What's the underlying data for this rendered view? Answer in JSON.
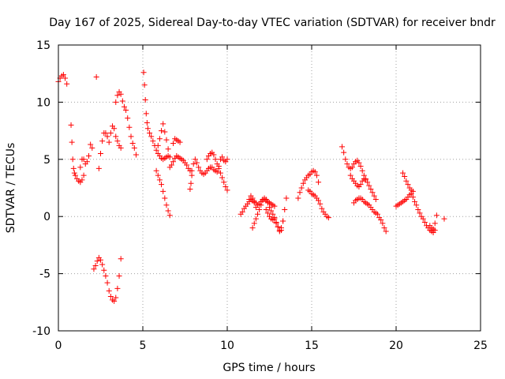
{
  "chart_data": {
    "type": "scatter",
    "title": "Day 167 of 2025, Sidereal Day-to-day VTEC variation (SDTVAR) for receiver bndr",
    "xlabel": "GPS time / hours",
    "ylabel": "SDTVAR / TECUs",
    "xlim": [
      0,
      25
    ],
    "ylim": [
      -10,
      15
    ],
    "xticks": [
      0,
      5,
      10,
      15,
      20,
      25
    ],
    "yticks": [
      -10,
      -5,
      0,
      5,
      10,
      15
    ],
    "xtick_labels": [
      "0",
      "5",
      "10",
      "15",
      "20",
      "25"
    ],
    "ytick_labels": [
      "-10",
      "-5",
      "0",
      "5",
      "10",
      "15"
    ],
    "grid": true,
    "marker": "+",
    "color": "#ff0000",
    "series": [
      {
        "name": "arc-00",
        "x": [
          0.0,
          0.1,
          0.2,
          0.3,
          0.4,
          0.5
        ],
        "y": [
          11.8,
          12.1,
          12.3,
          12.4,
          12.1,
          11.6
        ]
      },
      {
        "name": "arc-01",
        "x": [
          0.75,
          0.8,
          0.85,
          0.9,
          0.95,
          1.0,
          1.1,
          1.2,
          1.3,
          1.4,
          1.5
        ],
        "y": [
          8.0,
          6.5,
          5.0,
          4.2,
          3.8,
          3.6,
          3.3,
          3.1,
          3.0,
          3.2,
          3.6
        ]
      },
      {
        "name": "arc-02",
        "x": [
          1.3,
          1.4,
          1.5,
          1.6,
          1.7,
          1.8,
          1.9,
          2.0
        ],
        "y": [
          4.3,
          5.0,
          5.0,
          4.6,
          4.8,
          5.3,
          6.3,
          6.0
        ]
      },
      {
        "name": "arc-03",
        "x": [
          2.25
        ],
        "y": [
          12.2
        ]
      },
      {
        "name": "arc-04",
        "x": [
          2.1,
          2.2,
          2.3,
          2.4,
          2.5,
          2.6,
          2.7,
          2.8,
          2.9,
          3.0,
          3.1,
          3.2,
          3.3,
          3.4,
          3.5,
          3.6,
          3.7
        ],
        "y": [
          -4.6,
          -4.3,
          -3.9,
          -3.6,
          -3.8,
          -4.2,
          -4.7,
          -5.2,
          -5.8,
          -6.5,
          -7.0,
          -7.3,
          -7.4,
          -7.1,
          -6.3,
          -5.2,
          -3.7
        ]
      },
      {
        "name": "arc-05",
        "x": [
          2.4,
          2.5,
          2.6,
          2.7,
          2.8,
          2.9,
          3.0,
          3.1,
          3.2,
          3.3,
          3.4,
          3.5,
          3.6,
          3.7
        ],
        "y": [
          4.2,
          5.5,
          6.6,
          7.3,
          7.3,
          7.0,
          6.5,
          7.3,
          7.9,
          7.7,
          7.0,
          6.6,
          6.2,
          6.0
        ]
      },
      {
        "name": "arc-06",
        "x": [
          3.4,
          3.5,
          3.6,
          3.7,
          3.8,
          3.9,
          4.0,
          4.1,
          4.2,
          4.3,
          4.4,
          4.5,
          4.6
        ],
        "y": [
          10.0,
          10.6,
          10.9,
          10.7,
          10.1,
          9.6,
          9.3,
          8.6,
          7.8,
          7.0,
          6.4,
          6.0,
          5.4
        ]
      },
      {
        "name": "arc-07",
        "x": [
          5.05,
          5.1,
          5.15,
          5.2,
          5.25,
          5.3,
          5.4,
          5.5,
          5.6,
          5.7,
          5.8,
          5.9,
          6.0,
          6.1,
          6.2,
          6.3,
          6.4,
          6.5,
          6.6
        ],
        "y": [
          12.6,
          11.5,
          10.2,
          9.0,
          8.2,
          7.7,
          7.3,
          7.0,
          6.6,
          6.2,
          5.8,
          5.5,
          5.3,
          5.1,
          5.0,
          5.1,
          5.2,
          5.3,
          5.2
        ]
      },
      {
        "name": "arc-08",
        "x": [
          5.8,
          5.9,
          6.0,
          6.1,
          6.2,
          6.3,
          6.4,
          6.5,
          6.6
        ],
        "y": [
          4.0,
          3.6,
          3.2,
          2.8,
          2.2,
          1.6,
          1.0,
          0.5,
          0.1
        ]
      },
      {
        "name": "arc-09",
        "x": [
          5.9,
          6.0,
          6.1,
          6.2,
          6.3,
          6.4,
          6.5
        ],
        "y": [
          6.2,
          6.8,
          7.5,
          8.1,
          7.4,
          6.7,
          5.9
        ]
      },
      {
        "name": "arc-10",
        "x": [
          6.6,
          6.7,
          6.8,
          6.9,
          7.0,
          7.1,
          7.2,
          7.3,
          7.4,
          7.5,
          7.6,
          7.7,
          7.8
        ],
        "y": [
          4.3,
          4.5,
          4.8,
          5.1,
          5.3,
          5.2,
          5.1,
          5.0,
          4.9,
          4.7,
          4.5,
          4.2,
          4.0
        ]
      },
      {
        "name": "arc-11",
        "x": [
          6.8,
          6.9,
          7.0,
          7.1,
          7.2
        ],
        "y": [
          6.4,
          6.8,
          6.7,
          6.6,
          6.5
        ]
      },
      {
        "name": "arc-12",
        "x": [
          7.8,
          7.85,
          7.9
        ],
        "y": [
          2.4,
          2.9,
          3.6
        ]
      },
      {
        "name": "arc-13",
        "x": [
          7.9,
          8.0,
          8.1,
          8.2,
          8.3,
          8.4,
          8.5,
          8.6,
          8.7,
          8.8,
          8.9,
          9.0,
          9.1,
          9.2,
          9.3,
          9.4,
          9.5,
          9.6,
          9.7,
          9.8,
          9.9,
          10.0
        ],
        "y": [
          4.0,
          4.6,
          5.0,
          4.7,
          4.3,
          4.0,
          3.8,
          3.7,
          3.8,
          4.0,
          4.2,
          4.3,
          4.3,
          4.1,
          4.0,
          3.9,
          4.4,
          5.0,
          5.2,
          4.9,
          4.8,
          5.0
        ]
      },
      {
        "name": "arc-14",
        "x": [
          8.8,
          8.9,
          9.0,
          9.1,
          9.2,
          9.3,
          9.4,
          9.5,
          9.6,
          9.7,
          9.8,
          9.9,
          10.0
        ],
        "y": [
          5.0,
          5.3,
          5.5,
          5.6,
          5.4,
          5.0,
          4.6,
          4.2,
          3.8,
          3.4,
          3.0,
          2.6,
          2.3
        ]
      },
      {
        "name": "arc-15",
        "x": [
          10.8,
          10.9,
          11.0,
          11.1,
          11.2,
          11.3,
          11.4,
          11.5,
          11.6,
          11.7,
          11.8,
          11.9,
          12.0,
          12.1,
          12.2,
          12.3,
          12.4,
          12.5,
          12.6,
          12.7,
          12.8
        ],
        "y": [
          0.2,
          0.4,
          0.7,
          0.9,
          1.1,
          1.3,
          1.5,
          1.4,
          1.3,
          1.2,
          1.0,
          1.1,
          1.3,
          1.5,
          1.5,
          1.4,
          1.3,
          1.2,
          1.1,
          1.0,
          0.9
        ]
      },
      {
        "name": "arc-16",
        "x": [
          11.3,
          11.4,
          11.5,
          11.6,
          11.7
        ],
        "y": [
          1.5,
          1.8,
          1.6,
          1.2,
          0.8
        ]
      },
      {
        "name": "arc-17",
        "x": [
          11.5,
          11.6,
          11.7,
          11.8,
          11.9,
          12.0,
          12.1,
          12.2,
          12.3,
          12.4,
          12.5,
          12.6,
          12.7,
          12.8,
          12.9,
          13.0,
          13.1,
          13.2,
          13.3,
          13.4,
          13.5
        ],
        "y": [
          -1.0,
          -0.6,
          -0.2,
          0.2,
          0.6,
          1.0,
          1.4,
          1.6,
          1.5,
          1.2,
          0.8,
          0.5,
          0.2,
          -0.1,
          -0.5,
          -0.9,
          -1.3,
          -1.2,
          -0.4,
          0.6,
          1.6
        ]
      },
      {
        "name": "arc-18",
        "x": [
          12.3,
          12.4,
          12.5,
          12.6,
          12.7,
          12.8,
          12.9,
          13.0,
          13.1,
          13.2,
          13.3
        ],
        "y": [
          0.6,
          0.3,
          0.0,
          -0.2,
          -0.3,
          -0.2,
          -0.6,
          -0.9,
          -1.2,
          -1.0,
          -0.4
        ]
      },
      {
        "name": "arc-19",
        "x": [
          14.2,
          14.3,
          14.4,
          14.5,
          14.6,
          14.7,
          14.8,
          14.9,
          15.0,
          15.1,
          15.2,
          15.3,
          15.4
        ],
        "y": [
          1.6,
          2.1,
          2.5,
          2.9,
          3.2,
          3.4,
          3.6,
          3.7,
          3.9,
          4.0,
          3.9,
          3.6,
          3.0
        ]
      },
      {
        "name": "arc-20",
        "x": [
          14.8,
          14.9,
          15.0,
          15.1,
          15.2,
          15.3,
          15.4,
          15.5,
          15.6,
          15.7,
          15.8,
          15.9,
          16.0
        ],
        "y": [
          2.3,
          2.2,
          2.0,
          1.9,
          1.8,
          1.6,
          1.4,
          1.1,
          0.7,
          0.4,
          0.2,
          0.0,
          -0.1
        ]
      },
      {
        "name": "arc-21",
        "x": [
          16.8,
          16.9,
          17.0,
          17.1,
          17.2,
          17.3
        ],
        "y": [
          6.1,
          5.6,
          5.0,
          4.6,
          4.3,
          4.2
        ]
      },
      {
        "name": "arc-22",
        "x": [
          17.4,
          17.5,
          17.6,
          17.7,
          17.8,
          17.9,
          18.0,
          18.1,
          18.2,
          18.3,
          18.4,
          18.5,
          18.6,
          18.7,
          18.8
        ],
        "y": [
          4.3,
          4.6,
          4.8,
          4.9,
          4.7,
          4.4,
          4.0,
          3.6,
          3.3,
          3.0,
          2.7,
          2.4,
          2.1,
          1.8,
          1.5
        ]
      },
      {
        "name": "arc-23",
        "x": [
          17.3,
          17.4,
          17.5,
          17.6,
          17.7,
          17.8,
          17.9,
          18.0,
          18.1,
          18.2
        ],
        "y": [
          3.6,
          3.3,
          3.1,
          2.9,
          2.7,
          2.6,
          2.8,
          3.1,
          3.3,
          3.2
        ]
      },
      {
        "name": "arc-24",
        "x": [
          17.5,
          17.6,
          17.7,
          17.8,
          17.9,
          18.0,
          18.1,
          18.2,
          18.3,
          18.4,
          18.5,
          18.6,
          18.7,
          18.8,
          18.9,
          19.0,
          19.1,
          19.2,
          19.3,
          19.4
        ],
        "y": [
          1.2,
          1.4,
          1.5,
          1.6,
          1.6,
          1.5,
          1.3,
          1.2,
          1.1,
          1.0,
          0.8,
          0.6,
          0.4,
          0.3,
          0.2,
          -0.1,
          -0.3,
          -0.6,
          -1.0,
          -1.3
        ]
      },
      {
        "name": "arc-25",
        "x": [
          20.0,
          20.1,
          20.2,
          20.3,
          20.4,
          20.5,
          20.6,
          20.7,
          20.8,
          20.9,
          21.0,
          21.1,
          21.2,
          21.3,
          21.4,
          21.5,
          21.6,
          21.7,
          21.8,
          21.9,
          22.0,
          22.1,
          22.2,
          22.3
        ],
        "y": [
          0.9,
          1.0,
          1.1,
          1.2,
          1.3,
          1.4,
          1.5,
          1.7,
          1.9,
          2.0,
          1.7,
          1.3,
          1.0,
          0.6,
          0.3,
          0.0,
          -0.2,
          -0.5,
          -0.8,
          -1.0,
          -1.2,
          -1.3,
          -1.4,
          -1.2
        ]
      },
      {
        "name": "arc-26",
        "x": [
          20.4,
          20.5,
          20.6,
          20.7,
          20.8,
          20.9,
          21.0
        ],
        "y": [
          3.8,
          3.5,
          3.1,
          2.8,
          2.5,
          2.3,
          2.2
        ]
      },
      {
        "name": "arc-27",
        "x": [
          22.0,
          22.1,
          22.2,
          22.3,
          22.4
        ],
        "y": [
          -0.8,
          -1.0,
          -1.1,
          -0.6,
          0.1
        ]
      },
      {
        "name": "arc-28",
        "x": [
          22.85
        ],
        "y": [
          -0.2
        ]
      }
    ]
  }
}
